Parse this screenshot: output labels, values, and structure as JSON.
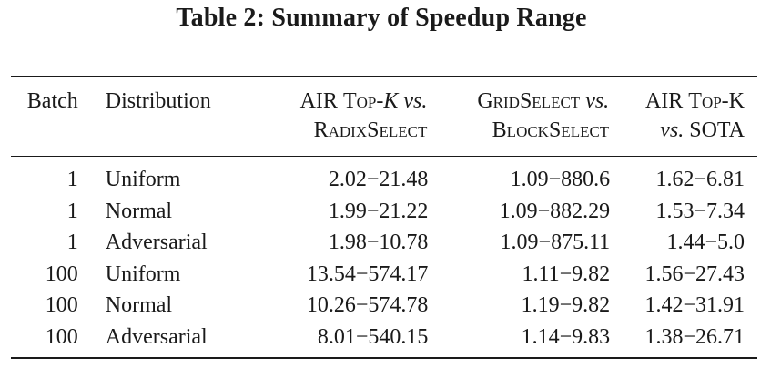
{
  "caption": "Table 2: Summary of Speedup Range",
  "table": {
    "headers": {
      "batch": "Batch",
      "distribution": "Distribution",
      "col1": {
        "a": "AIR ",
        "b": "Top",
        "c": "-",
        "d": "K",
        "e": " vs.",
        "f": "RadixSelect"
      },
      "col2": {
        "a": "GridSelect",
        "b": " vs.",
        "c": "BlockSelect"
      },
      "col3": {
        "a": "AIR ",
        "b": "Top-K",
        "c": "vs.",
        "d": " SOTA"
      }
    },
    "rows": [
      {
        "batch": "1",
        "distribution": "Uniform",
        "air_vs_radix": "2.02−21.48",
        "grid_vs_block": "1.09−880.6",
        "air_vs_sota": "1.62−6.81"
      },
      {
        "batch": "1",
        "distribution": "Normal",
        "air_vs_radix": "1.99−21.22",
        "grid_vs_block": "1.09−882.29",
        "air_vs_sota": "1.53−7.34"
      },
      {
        "batch": "1",
        "distribution": "Adversarial",
        "air_vs_radix": "1.98−10.78",
        "grid_vs_block": "1.09−875.11",
        "air_vs_sota": "1.44−5.0"
      },
      {
        "batch": "100",
        "distribution": "Uniform",
        "air_vs_radix": "13.54−574.17",
        "grid_vs_block": "1.11−9.82",
        "air_vs_sota": "1.56−27.43"
      },
      {
        "batch": "100",
        "distribution": "Normal",
        "air_vs_radix": "10.26−574.78",
        "grid_vs_block": "1.19−9.82",
        "air_vs_sota": "1.42−31.91"
      },
      {
        "batch": "100",
        "distribution": "Adversarial",
        "air_vs_radix": "8.01−540.15",
        "grid_vs_block": "1.14−9.83",
        "air_vs_sota": "1.38−26.71"
      }
    ]
  }
}
